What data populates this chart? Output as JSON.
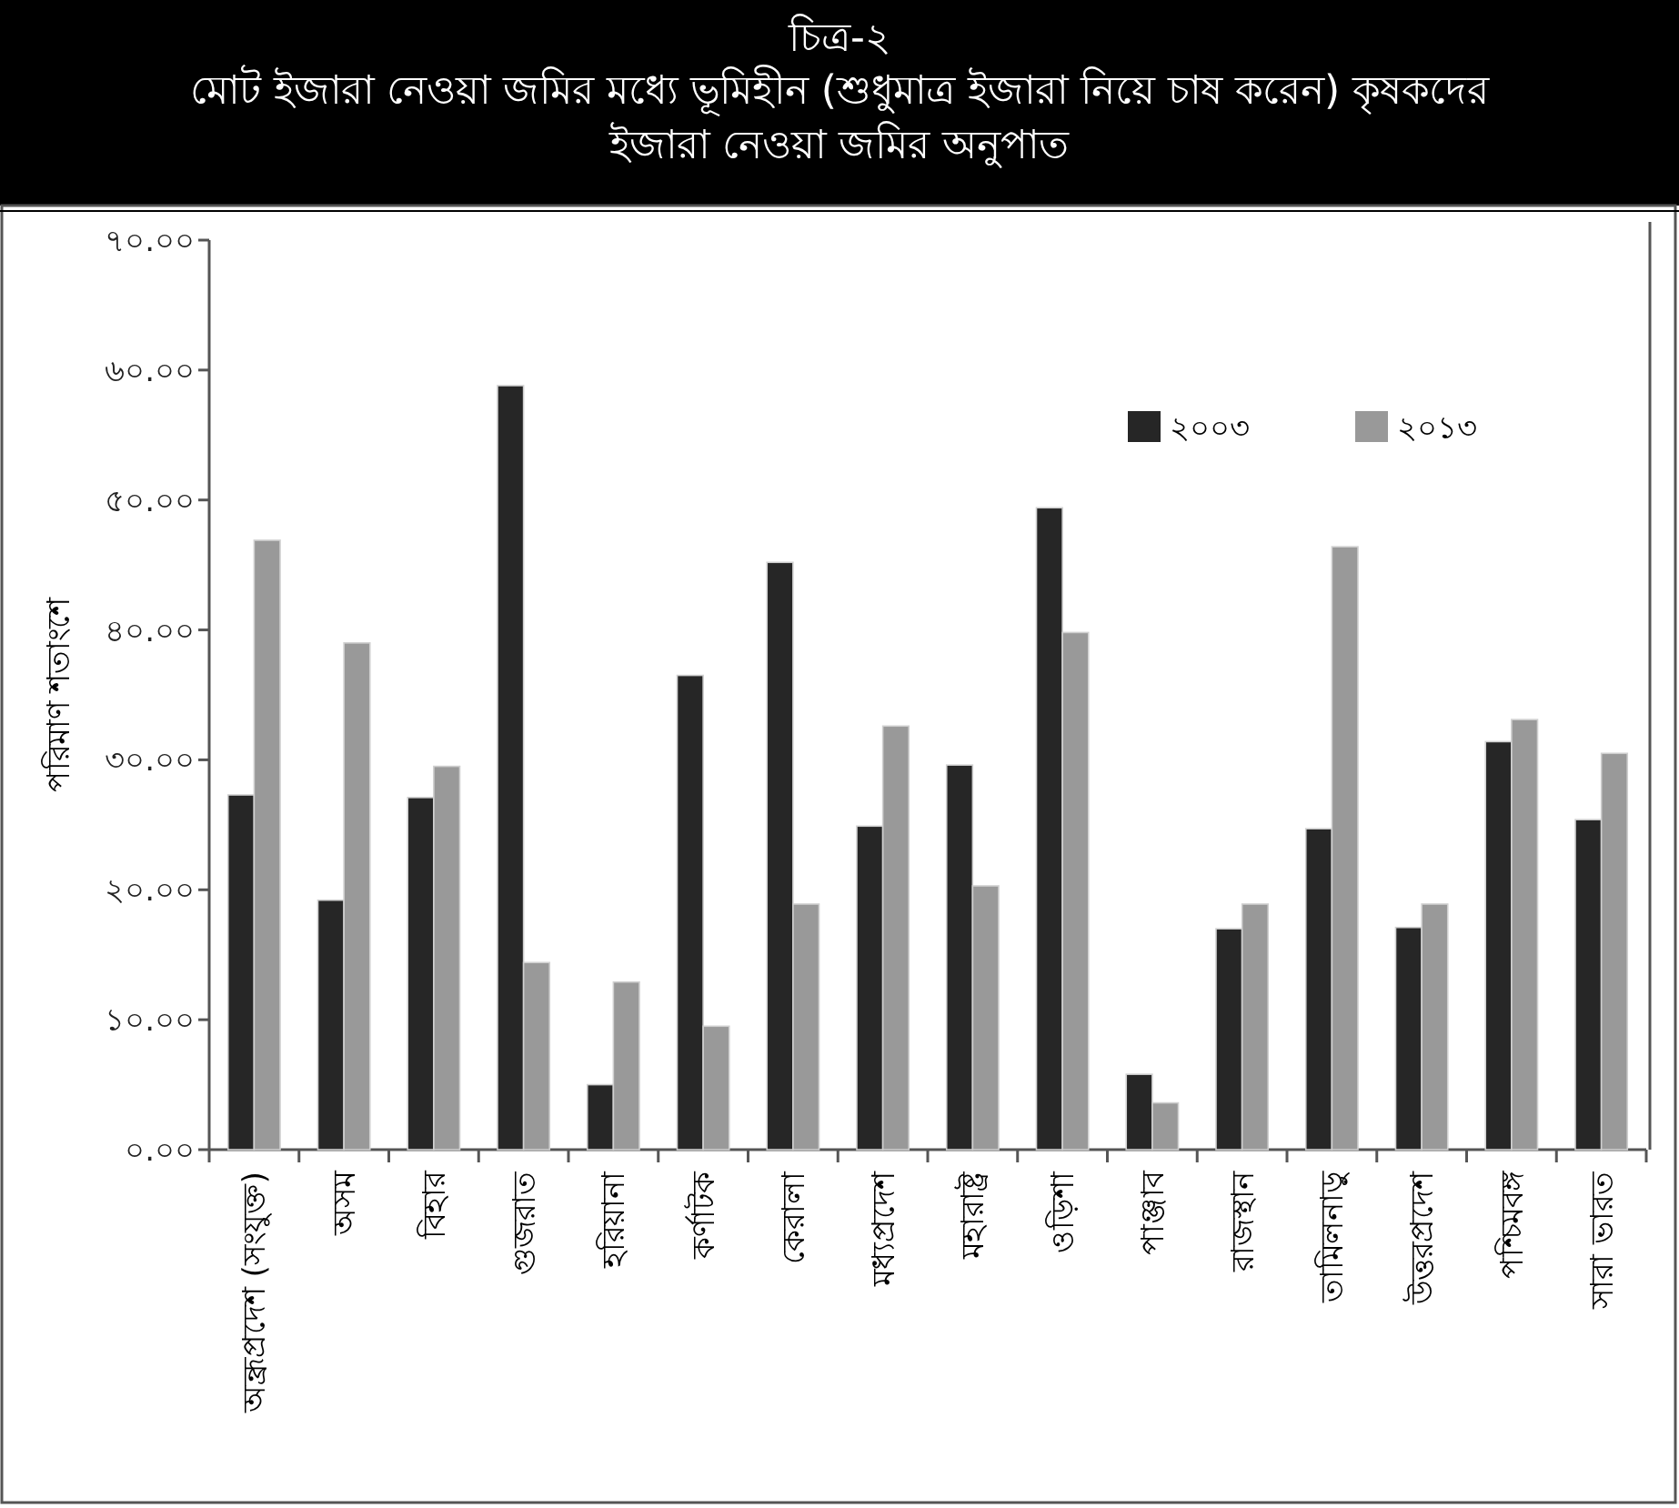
{
  "chart_data": {
    "type": "bar",
    "title": "চিত্র-২",
    "subtitle": "মোট ইজারা নেওয়া জমির মধ্যে ভূমিহীন (শুধুমাত্র ইজারা নিয়ে চাষ করেন) কৃষকদের ইজারা নেওয়া জমির অনুপাত",
    "ylabel": "পরিমাণ শতাংশে",
    "categories": [
      "অন্ধ্রপ্রদেশ (সংযুক্ত)",
      "অসম",
      "বিহার",
      "গুজরাত",
      "হরিয়ানা",
      "কর্ণাটক",
      "কেরালা",
      "মধ্যপ্রদেশ",
      "মহারাষ্ট্র",
      "ওড়িশা",
      "পাঞ্জাব",
      "রাজস্থান",
      "তামিলনাড়ু",
      "উত্তরপ্রদেশ",
      "পশ্চিমবঙ্গ",
      "সারা ভারত"
    ],
    "series": [
      {
        "name": "২০০৩",
        "color": "#262626",
        "values": [
          27.3,
          19.2,
          27.1,
          58.8,
          5.0,
          36.5,
          45.2,
          24.9,
          29.6,
          49.4,
          5.8,
          17.0,
          24.7,
          17.1,
          31.4,
          25.4
        ]
      },
      {
        "name": "২০১৩",
        "color": "#999999",
        "values": [
          46.9,
          39.0,
          29.5,
          14.4,
          12.9,
          9.5,
          18.9,
          32.6,
          20.3,
          39.8,
          3.6,
          18.9,
          46.4,
          18.9,
          33.1,
          30.5
        ]
      }
    ],
    "ylim": [
      0,
      70
    ],
    "yticks": [
      {
        "value": 0,
        "label": "০.০০"
      },
      {
        "value": 10,
        "label": "১০.০০"
      },
      {
        "value": 20,
        "label": "২০.০০"
      },
      {
        "value": 30,
        "label": "৩০.০০"
      },
      {
        "value": 40,
        "label": "৪০.০০"
      },
      {
        "value": 50,
        "label": "৫০.০০"
      },
      {
        "value": 60,
        "label": "৬০.০০"
      },
      {
        "value": 70,
        "label": "৭০.০০"
      }
    ],
    "grid": false,
    "legend": "top right"
  }
}
